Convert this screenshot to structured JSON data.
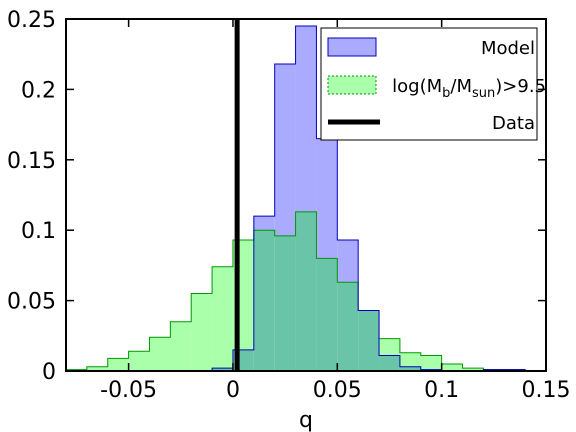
{
  "chart_data": {
    "type": "histogram",
    "xlabel": "q",
    "xlim": [
      -0.08,
      0.15
    ],
    "ylim": [
      0,
      0.25
    ],
    "x_ticks": [
      {
        "value": -0.05,
        "label": "-0.05"
      },
      {
        "value": 0,
        "label": "0"
      },
      {
        "value": 0.05,
        "label": "0.05"
      },
      {
        "value": 0.1,
        "label": "0.1"
      },
      {
        "value": 0.15,
        "label": "0.15"
      }
    ],
    "y_ticks": [
      {
        "value": 0,
        "label": "0"
      },
      {
        "value": 0.05,
        "label": "0.05"
      },
      {
        "value": 0.1,
        "label": "0.1"
      },
      {
        "value": 0.15,
        "label": "0.15"
      },
      {
        "value": 0.2,
        "label": "0.2"
      },
      {
        "value": 0.25,
        "label": "0.25"
      }
    ],
    "bin_edges": [
      -0.08,
      -0.07,
      -0.06,
      -0.05,
      -0.04,
      -0.03,
      -0.02,
      -0.01,
      0.0,
      0.01,
      0.02,
      0.03,
      0.04,
      0.05,
      0.06,
      0.07,
      0.08,
      0.09,
      0.1,
      0.11,
      0.12,
      0.13,
      0.14,
      0.15
    ],
    "series": [
      {
        "name": "Model",
        "fill": "#aaaaff",
        "stroke": "#0000bb",
        "values": [
          0,
          0,
          0,
          0,
          0,
          0,
          0,
          0.002,
          0.015,
          0.11,
          0.218,
          0.245,
          0.165,
          0.093,
          0.043,
          0.011,
          0.003,
          0.001,
          0,
          0,
          0.001,
          0.001,
          0
        ]
      },
      {
        "name": "log(M_b/M_sun)>9.5",
        "fill": "#aaffaa",
        "stroke": "#009900",
        "values": [
          0.001,
          0.003,
          0.009,
          0.014,
          0.024,
          0.035,
          0.055,
          0.074,
          0.093,
          0.1,
          0.096,
          0.113,
          0.08,
          0.063,
          0.043,
          0.023,
          0.013,
          0.011,
          0.005,
          0.002,
          0.001,
          0.001,
          0
        ]
      }
    ],
    "overlap_fill": "#6ac4a8",
    "data_line": {
      "name": "Data",
      "x": 0.002,
      "color": "#000000"
    },
    "legend": {
      "position": "top-right",
      "entries": [
        {
          "label_main": "Model",
          "label_sub": ""
        },
        {
          "label_main": "log(M",
          "sub1": "b",
          "mid": "/M",
          "sub2": "sun",
          "end": ")>9.5"
        },
        {
          "label_main": "Data"
        }
      ]
    }
  }
}
